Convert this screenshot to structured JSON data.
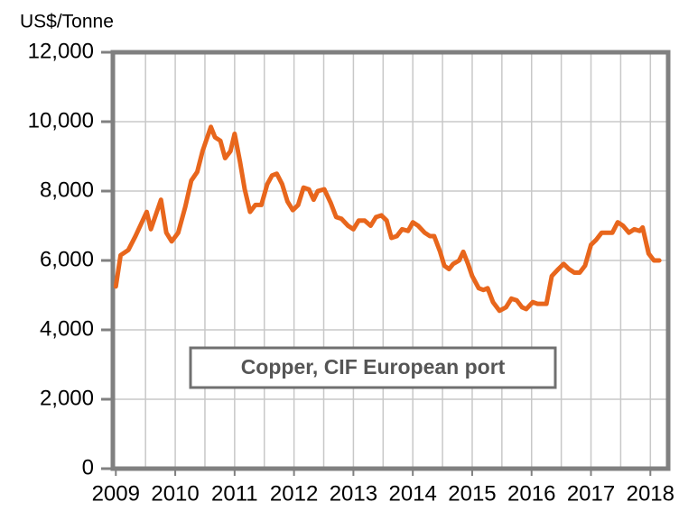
{
  "chart_data": {
    "type": "line",
    "y_axis_label": "US$/Tonne",
    "annotation": "Copper, CIF European port",
    "xlim": [
      2008.95,
      2018.33
    ],
    "xticks": [
      2009,
      2010,
      2011,
      2012,
      2013,
      2014,
      2015,
      2016,
      2017,
      2018
    ],
    "xgrid": [
      2009.5,
      2010,
      2010.5,
      2011,
      2011.5,
      2012,
      2012.5,
      2013,
      2013.5,
      2014,
      2014.5,
      2015,
      2015.5,
      2016,
      2016.5,
      2017,
      2017.5,
      2018
    ],
    "ylim": [
      0,
      12000
    ],
    "yticks": [
      {
        "value": 0,
        "label": "0"
      },
      {
        "value": 2000,
        "label": "2,000"
      },
      {
        "value": 4000,
        "label": "4,000"
      },
      {
        "value": 6000,
        "label": "6,000"
      },
      {
        "value": 8000,
        "label": "8,000"
      },
      {
        "value": 10000,
        "label": "10,000"
      },
      {
        "value": 12000,
        "label": "12,000"
      }
    ],
    "grid": true,
    "series": [
      {
        "name": "Copper, CIF European port",
        "color": "#e8661c",
        "x": [
          2009.0,
          2009.08,
          2009.21,
          2009.33,
          2009.52,
          2009.59,
          2009.76,
          2009.85,
          2009.94,
          2010.05,
          2010.17,
          2010.27,
          2010.37,
          2010.46,
          2010.6,
          2010.67,
          2010.76,
          2010.84,
          2010.93,
          2011.0,
          2011.09,
          2011.17,
          2011.26,
          2011.35,
          2011.45,
          2011.55,
          2011.63,
          2011.71,
          2011.8,
          2011.89,
          2011.98,
          2012.07,
          2012.16,
          2012.25,
          2012.33,
          2012.4,
          2012.51,
          2012.62,
          2012.71,
          2012.8,
          2012.91,
          2013.0,
          2013.09,
          2013.19,
          2013.29,
          2013.38,
          2013.47,
          2013.56,
          2013.64,
          2013.73,
          2013.82,
          2013.92,
          2014.0,
          2014.09,
          2014.2,
          2014.29,
          2014.36,
          2014.46,
          2014.53,
          2014.61,
          2014.68,
          2014.78,
          2014.85,
          2014.93,
          2015.0,
          2015.11,
          2015.19,
          2015.26,
          2015.35,
          2015.46,
          2015.57,
          2015.66,
          2015.75,
          2015.84,
          2015.91,
          2016.02,
          2016.1,
          2016.17,
          2016.25,
          2016.34,
          2016.45,
          2016.54,
          2016.63,
          2016.72,
          2016.81,
          2016.9,
          2017.0,
          2017.09,
          2017.18,
          2017.27,
          2017.36,
          2017.45,
          2017.54,
          2017.64,
          2017.73,
          2017.82,
          2017.87,
          2017.97,
          2018.06,
          2018.15
        ],
        "values": [
          5250,
          6150,
          6300,
          6700,
          7400,
          6900,
          7750,
          6800,
          6550,
          6800,
          7550,
          8300,
          8550,
          9150,
          9850,
          9550,
          9450,
          8950,
          9150,
          9650,
          8850,
          8050,
          7400,
          7600,
          7600,
          8200,
          8450,
          8500,
          8200,
          7700,
          7450,
          7600,
          8100,
          8050,
          7750,
          8000,
          8050,
          7650,
          7250,
          7200,
          7000,
          6900,
          7150,
          7150,
          7000,
          7250,
          7300,
          7150,
          6650,
          6700,
          6900,
          6850,
          7100,
          7000,
          6800,
          6700,
          6700,
          6250,
          5850,
          5750,
          5900,
          6000,
          6250,
          5900,
          5550,
          5200,
          5150,
          5200,
          4800,
          4550,
          4650,
          4900,
          4850,
          4650,
          4600,
          4800,
          4750,
          4750,
          4750,
          5550,
          5750,
          5900,
          5750,
          5650,
          5650,
          5850,
          6450,
          6600,
          6800,
          6800,
          6800,
          7100,
          7000,
          6800,
          6900,
          6850,
          6950,
          6200,
          6000,
          6000
        ]
      }
    ]
  }
}
